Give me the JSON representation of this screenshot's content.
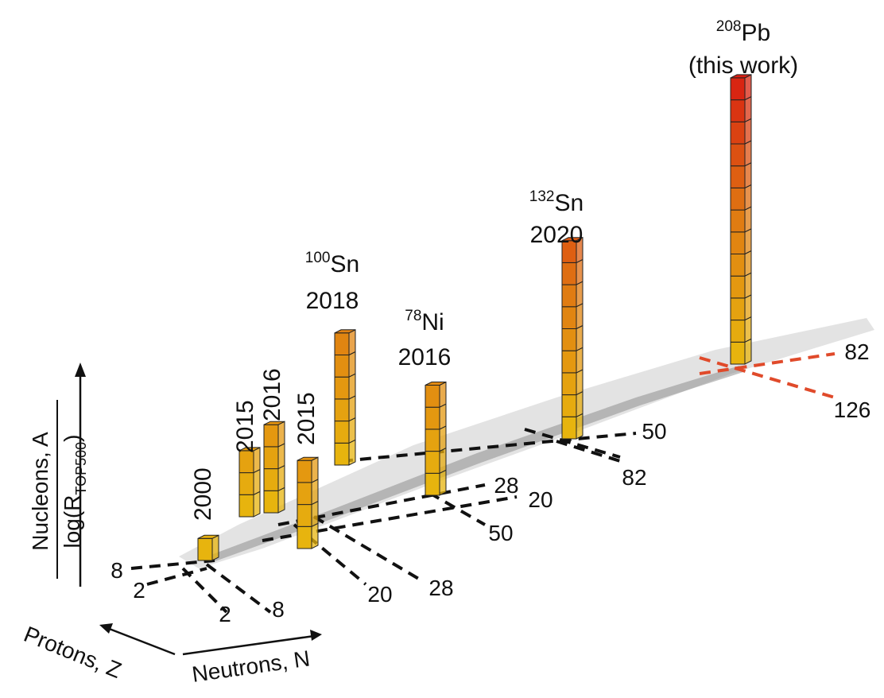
{
  "chart_data": {
    "type": "bar",
    "annotations": [
      {
        "text": "Pb",
        "mass": "208",
        "note": "(this work)"
      },
      {
        "text": "Sn",
        "mass": "132",
        "year": "2020"
      },
      {
        "text": "Sn",
        "mass": "100",
        "year": "2018"
      },
      {
        "text": "Ni",
        "mass": "78",
        "year": "2016"
      },
      {
        "year_a": "2016",
        "year_b": "2015",
        "year_c": "2015",
        "year_d": "2000"
      }
    ],
    "bars": [
      {
        "nucleus": "208Pb",
        "cubes": 13
      },
      {
        "nucleus": "132Sn",
        "cubes": 9
      },
      {
        "nucleus": "100Sn",
        "cubes": 6
      },
      {
        "nucleus": "78Ni",
        "cubes": 5
      },
      {
        "nucleus": "2016",
        "cubes": 4
      },
      {
        "nucleus": "2015a",
        "cubes": 3
      },
      {
        "nucleus": "2015b",
        "cubes": 4
      },
      {
        "nucleus": "2000",
        "cubes": 1
      }
    ],
    "magic_neutron_ticks": [
      "2",
      "8",
      "20",
      "28",
      "50",
      "82",
      "126"
    ],
    "magic_proton_ticks": [
      "2",
      "8",
      "20",
      "28",
      "50",
      "82"
    ],
    "axes": {
      "z": {
        "label": "Protons, Z"
      },
      "n": {
        "label": "Neutrons, N"
      },
      "v": {
        "numerator": "Nucleons, A",
        "denominator": "log(R",
        "subscript": "TOP500",
        "close": ")"
      }
    },
    "colors": {
      "bar_low": "#e8b90e",
      "bar_mid": "#e07c12",
      "bar_high": "#d81e12",
      "magic_line": "#111111",
      "pb_line": "#e04a2a",
      "chart_band": "#c8c8c8"
    }
  }
}
